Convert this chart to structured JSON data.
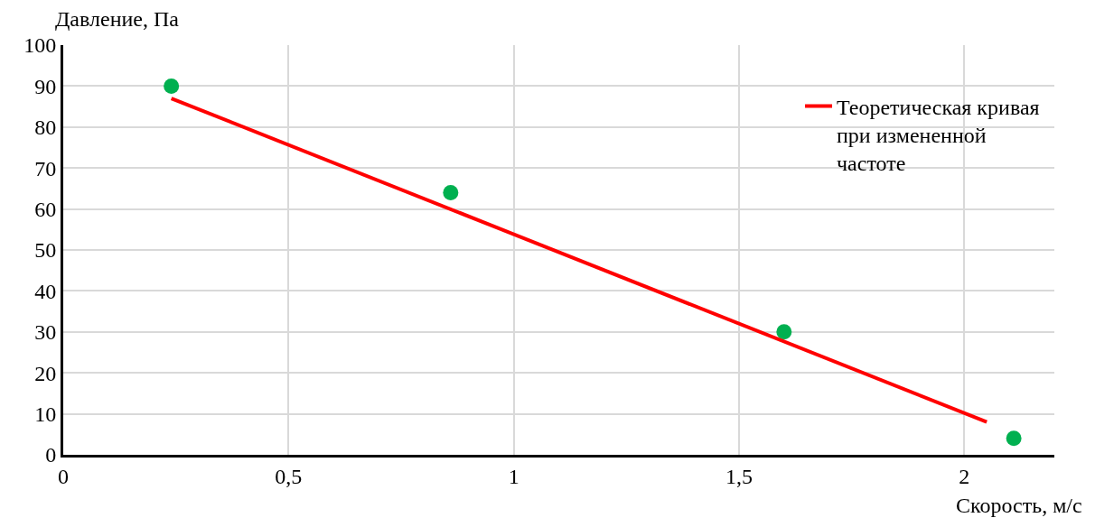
{
  "chart_data": {
    "type": "scatter",
    "xlabel": "Скорость, м/с",
    "ylabel": "Давление, Па",
    "series": [
      {
        "color": "#00b050",
        "x": [
          0.24,
          0.86,
          1.6,
          2.11
        ],
        "values": [
          90,
          64,
          30,
          4
        ],
        "marker": "circle"
      },
      {
        "type": "line",
        "name": "Теоретическая кривая\nпри измененной\nчастоте",
        "color": "#ff0000",
        "x": [
          0.24,
          2.05
        ],
        "values": [
          87,
          8
        ],
        "marker": "none"
      }
    ],
    "xlim": [
      0,
      2.2
    ],
    "ylim": [
      0,
      100
    ],
    "xticks": [
      0,
      {
        "value": 0.5,
        "label": "0,5"
      },
      1,
      {
        "value": 1.5,
        "label": "1,5"
      },
      2
    ],
    "yticks": [
      0,
      10,
      20,
      30,
      40,
      50,
      60,
      70,
      80,
      90,
      100
    ],
    "grid": true,
    "legend": "top right"
  }
}
